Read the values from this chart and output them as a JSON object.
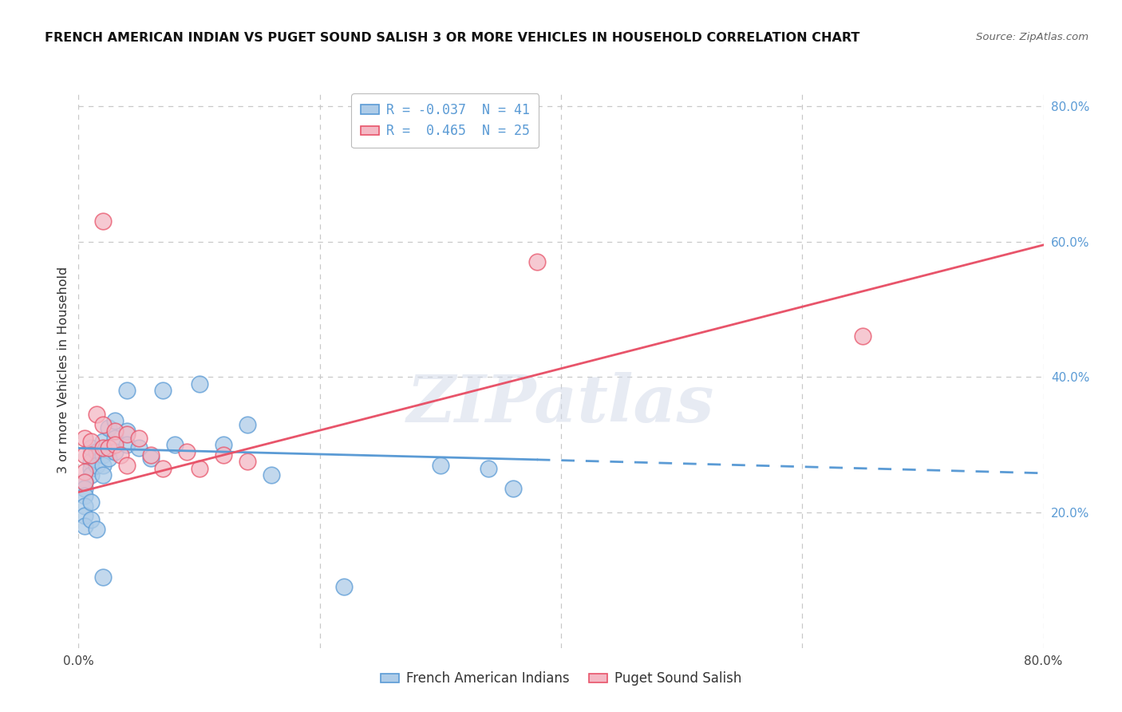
{
  "title": "FRENCH AMERICAN INDIAN VS PUGET SOUND SALISH 3 OR MORE VEHICLES IN HOUSEHOLD CORRELATION CHART",
  "source": "Source: ZipAtlas.com",
  "ylabel": "3 or more Vehicles in Household",
  "xlim": [
    0.0,
    0.8
  ],
  "ylim": [
    0.0,
    0.82
  ],
  "x_ticks": [
    0.0,
    0.2,
    0.4,
    0.6,
    0.8
  ],
  "x_tick_labels": [
    "0.0%",
    "",
    "",
    "",
    "80.0%"
  ],
  "y_ticks_right": [
    0.2,
    0.4,
    0.6,
    0.8
  ],
  "legend_entries": [
    {
      "label": "R = -0.037  N = 41"
    },
    {
      "label": "R =  0.465  N = 25"
    }
  ],
  "blue_scatter": [
    [
      0.01,
      0.295
    ],
    [
      0.01,
      0.275
    ],
    [
      0.01,
      0.265
    ],
    [
      0.01,
      0.255
    ],
    [
      0.015,
      0.29
    ],
    [
      0.015,
      0.27
    ],
    [
      0.02,
      0.305
    ],
    [
      0.02,
      0.285
    ],
    [
      0.02,
      0.27
    ],
    [
      0.02,
      0.255
    ],
    [
      0.025,
      0.325
    ],
    [
      0.025,
      0.295
    ],
    [
      0.025,
      0.28
    ],
    [
      0.03,
      0.335
    ],
    [
      0.03,
      0.31
    ],
    [
      0.03,
      0.29
    ],
    [
      0.04,
      0.32
    ],
    [
      0.04,
      0.38
    ],
    [
      0.04,
      0.3
    ],
    [
      0.05,
      0.295
    ],
    [
      0.06,
      0.28
    ],
    [
      0.07,
      0.38
    ],
    [
      0.08,
      0.3
    ],
    [
      0.1,
      0.39
    ],
    [
      0.12,
      0.3
    ],
    [
      0.14,
      0.33
    ],
    [
      0.16,
      0.255
    ],
    [
      0.3,
      0.27
    ],
    [
      0.34,
      0.265
    ],
    [
      0.36,
      0.235
    ],
    [
      0.005,
      0.245
    ],
    [
      0.005,
      0.235
    ],
    [
      0.005,
      0.225
    ],
    [
      0.005,
      0.21
    ],
    [
      0.005,
      0.195
    ],
    [
      0.005,
      0.18
    ],
    [
      0.01,
      0.215
    ],
    [
      0.01,
      0.19
    ],
    [
      0.015,
      0.175
    ],
    [
      0.02,
      0.105
    ],
    [
      0.22,
      0.09
    ]
  ],
  "pink_scatter": [
    [
      0.005,
      0.31
    ],
    [
      0.005,
      0.285
    ],
    [
      0.005,
      0.26
    ],
    [
      0.01,
      0.305
    ],
    [
      0.01,
      0.285
    ],
    [
      0.015,
      0.345
    ],
    [
      0.02,
      0.33
    ],
    [
      0.02,
      0.295
    ],
    [
      0.025,
      0.295
    ],
    [
      0.03,
      0.32
    ],
    [
      0.03,
      0.3
    ],
    [
      0.035,
      0.285
    ],
    [
      0.04,
      0.315
    ],
    [
      0.04,
      0.27
    ],
    [
      0.05,
      0.31
    ],
    [
      0.06,
      0.285
    ],
    [
      0.07,
      0.265
    ],
    [
      0.09,
      0.29
    ],
    [
      0.1,
      0.265
    ],
    [
      0.12,
      0.285
    ],
    [
      0.02,
      0.63
    ],
    [
      0.38,
      0.57
    ],
    [
      0.65,
      0.46
    ],
    [
      0.005,
      0.245
    ],
    [
      0.14,
      0.275
    ]
  ],
  "blue_line_solid": {
    "x": [
      0.0,
      0.38
    ],
    "y": [
      0.295,
      0.278
    ]
  },
  "blue_line_dashed": {
    "x": [
      0.38,
      0.8
    ],
    "y": [
      0.278,
      0.258
    ]
  },
  "pink_line": {
    "x": [
      0.0,
      0.8
    ],
    "y": [
      0.23,
      0.595
    ]
  },
  "blue_color": "#5b9bd5",
  "pink_color": "#e8546a",
  "blue_fill": "#aecce8",
  "pink_fill": "#f4b8c4",
  "watermark_text": "ZIPatlas",
  "background_color": "#ffffff",
  "grid_color": "#c8c8c8"
}
